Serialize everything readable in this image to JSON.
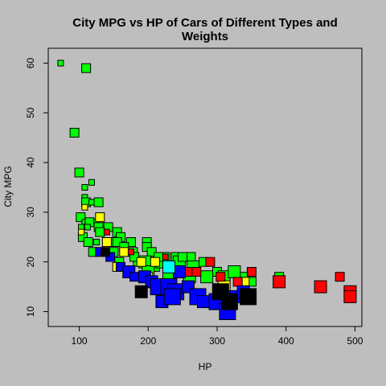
{
  "chart_data": {
    "type": "scatter",
    "title": "City MPG vs HP of Cars of Different Types and Weights",
    "xlabel": "HP",
    "ylabel": "City MPG",
    "xlim": [
      55,
      510
    ],
    "ylim": [
      7,
      63
    ],
    "xticks": [
      100,
      200,
      300,
      400,
      500
    ],
    "yticks": [
      10,
      20,
      30,
      40,
      50,
      60
    ],
    "grid": false,
    "legend": "none",
    "marker": "square",
    "marker_size_encodes": "weight",
    "marker_color_encodes": "type",
    "colors": {
      "green": "#00ff00",
      "yellow": "#ffff00",
      "red": "#ff0000",
      "blue": "#0000ff",
      "black": "#000000",
      "cyan": "#00ffff"
    },
    "series": [
      {
        "color": "green",
        "points": [
          [
            73,
            60,
            1
          ],
          [
            110,
            59,
            2
          ],
          [
            93,
            46,
            2
          ],
          [
            100,
            38,
            2
          ],
          [
            118,
            36,
            1
          ],
          [
            108,
            35,
            1
          ],
          [
            108,
            33,
            1
          ],
          [
            110,
            32,
            2
          ],
          [
            118,
            32,
            1
          ],
          [
            128,
            32,
            2
          ],
          [
            102,
            29,
            2
          ],
          [
            108,
            28,
            1
          ],
          [
            115,
            28,
            2
          ],
          [
            125,
            28,
            1
          ],
          [
            103,
            27,
            1
          ],
          [
            112,
            27,
            1
          ],
          [
            128,
            27,
            2
          ],
          [
            142,
            27,
            2
          ],
          [
            135,
            26,
            1
          ],
          [
            105,
            25,
            2
          ],
          [
            130,
            26,
            2
          ],
          [
            155,
            26,
            2
          ],
          [
            160,
            25,
            2
          ],
          [
            113,
            24,
            2
          ],
          [
            125,
            24,
            1
          ],
          [
            148,
            24,
            2
          ],
          [
            155,
            24,
            2
          ],
          [
            175,
            24,
            2
          ],
          [
            198,
            24,
            2
          ],
          [
            165,
            23,
            2
          ],
          [
            120,
            22,
            2
          ],
          [
            150,
            22,
            2
          ],
          [
            178,
            22,
            2
          ],
          [
            198,
            23,
            2
          ],
          [
            205,
            22,
            2
          ],
          [
            225,
            21,
            2
          ],
          [
            240,
            21,
            2
          ],
          [
            262,
            21,
            2
          ],
          [
            280,
            20,
            2
          ],
          [
            158,
            20,
            2
          ],
          [
            185,
            20,
            2
          ],
          [
            195,
            20,
            3
          ],
          [
            210,
            19,
            2
          ],
          [
            220,
            20,
            3
          ],
          [
            245,
            20,
            3
          ],
          [
            265,
            19,
            3
          ],
          [
            300,
            18,
            2
          ],
          [
            310,
            17,
            3
          ],
          [
            325,
            18,
            3
          ],
          [
            340,
            17,
            2
          ],
          [
            350,
            16,
            2
          ],
          [
            390,
            17,
            2
          ],
          [
            200,
            18,
            3
          ],
          [
            230,
            17,
            3
          ],
          [
            260,
            17,
            3
          ],
          [
            285,
            17,
            3
          ],
          [
            180,
            21,
            2
          ],
          [
            215,
            21,
            2
          ],
          [
            250,
            21,
            2
          ]
        ]
      },
      {
        "color": "yellow",
        "points": [
          [
            130,
            29,
            2
          ],
          [
            108,
            31,
            1
          ],
          [
            103,
            26,
            1
          ],
          [
            140,
            24,
            2
          ],
          [
            165,
            22,
            2
          ],
          [
            190,
            20,
            2
          ],
          [
            210,
            20,
            2
          ],
          [
            155,
            19,
            2
          ],
          [
            200,
            17,
            2
          ],
          [
            228,
            19,
            2
          ],
          [
            255,
            18,
            2
          ],
          [
            310,
            15,
            3
          ],
          [
            340,
            16,
            2
          ]
        ]
      },
      {
        "color": "red",
        "points": [
          [
            140,
            26,
            1
          ],
          [
            175,
            22,
            1
          ],
          [
            225,
            21,
            1
          ],
          [
            260,
            18,
            2
          ],
          [
            270,
            18,
            2
          ],
          [
            290,
            20,
            2
          ],
          [
            305,
            17,
            2
          ],
          [
            330,
            16,
            2
          ],
          [
            350,
            18,
            2
          ],
          [
            390,
            16,
            3
          ],
          [
            450,
            15,
            3
          ],
          [
            478,
            17,
            2
          ],
          [
            493,
            14,
            3
          ],
          [
            493,
            13,
            3
          ]
        ]
      },
      {
        "color": "blue",
        "points": [
          [
            130,
            22,
            2
          ],
          [
            145,
            21,
            2
          ],
          [
            160,
            19,
            2
          ],
          [
            172,
            18,
            3
          ],
          [
            180,
            17,
            2
          ],
          [
            195,
            17,
            3
          ],
          [
            205,
            16,
            3
          ],
          [
            215,
            15,
            4
          ],
          [
            230,
            15,
            4
          ],
          [
            240,
            14,
            4
          ],
          [
            220,
            12,
            3
          ],
          [
            235,
            13,
            4
          ],
          [
            258,
            15,
            3
          ],
          [
            272,
            13,
            4
          ],
          [
            280,
            12,
            3
          ],
          [
            300,
            12,
            4
          ],
          [
            315,
            10,
            4
          ],
          [
            325,
            13,
            3
          ],
          [
            338,
            14,
            3
          ],
          [
            245,
            18,
            3
          ]
        ]
      },
      {
        "color": "black",
        "points": [
          [
            138,
            22,
            2
          ],
          [
            190,
            14,
            3
          ],
          [
            305,
            14,
            4
          ],
          [
            345,
            13,
            4
          ],
          [
            318,
            12,
            4
          ]
        ]
      },
      {
        "color": "cyan",
        "points": [
          [
            230,
            19,
            3
          ]
        ]
      }
    ]
  }
}
